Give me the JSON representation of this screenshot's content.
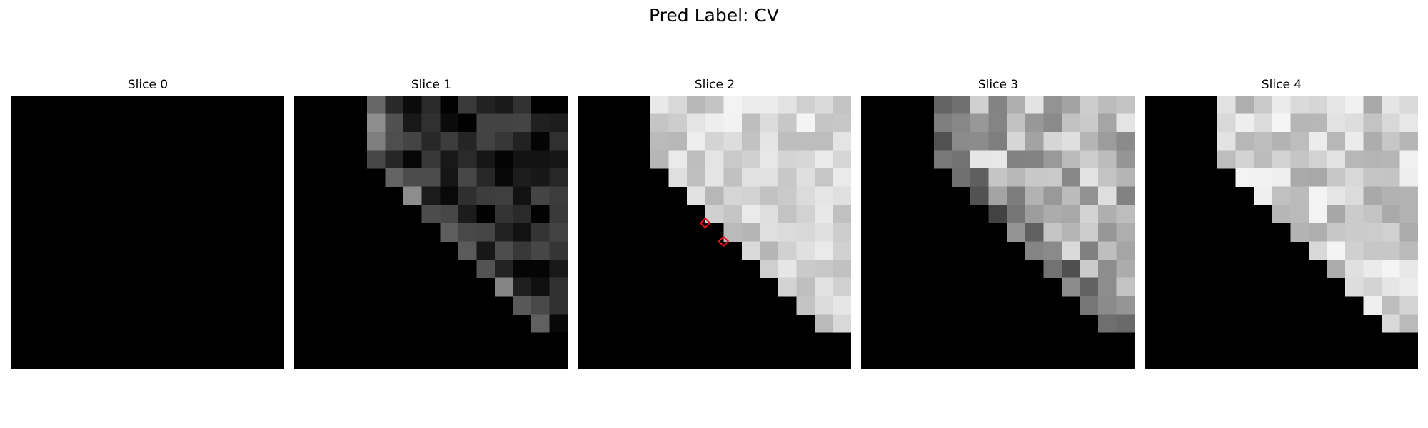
{
  "figure": {
    "title": "Pred Label: CV",
    "panels": [
      {
        "title": "Slice 0",
        "tone": "empty"
      },
      {
        "title": "Slice 1",
        "tone": "dark"
      },
      {
        "title": "Slice 2",
        "tone": "light",
        "markers": [
          [
            7,
            7
          ],
          [
            8,
            8
          ]
        ],
        "marker_color": "#e8101c"
      },
      {
        "title": "Slice 3",
        "tone": "mid"
      },
      {
        "title": "Slice 4",
        "tone": "light2"
      }
    ]
  }
}
